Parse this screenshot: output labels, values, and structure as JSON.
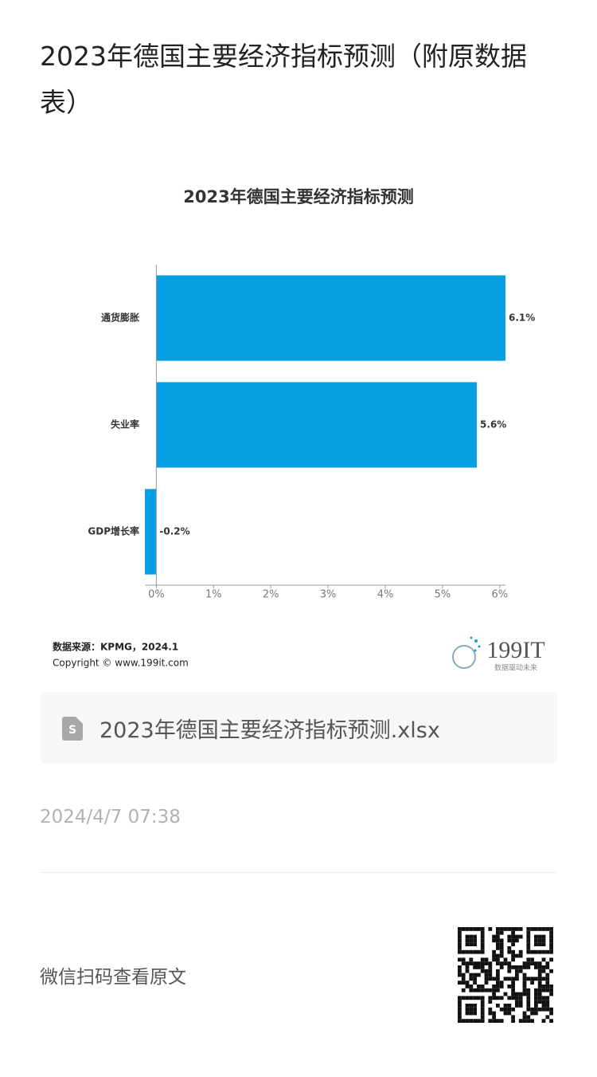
{
  "title": "2023年德国主要经济指标预测（附原数据表）",
  "chart_data": {
    "type": "hbar",
    "title": "2023年德国主要经济指标预测",
    "categories": [
      "通货膨胀",
      "失业率",
      "GDP增长率"
    ],
    "values": [
      6.1,
      5.6,
      -0.2
    ],
    "value_labels": [
      "6.1%",
      "5.6%",
      "-0.2%"
    ],
    "color": "#069fe3",
    "xlim": [
      -0.2,
      6.1
    ],
    "xticks": [
      {
        "value": 0,
        "label": "0%"
      },
      {
        "value": 1,
        "label": "1%"
      },
      {
        "value": 2,
        "label": "2%"
      },
      {
        "value": 3,
        "label": "3%"
      },
      {
        "value": 4,
        "label": "4%"
      },
      {
        "value": 5,
        "label": "5%"
      },
      {
        "value": 6,
        "label": "6%"
      }
    ],
    "source": "数据来源：KPMG，2024.1",
    "copyright": "Copyright © www.199it.com",
    "logo": "199IT",
    "logo_slogan": "数据驱动未来"
  },
  "attachment": "2023年德国主要经济指标预测.xlsx",
  "date": "2024/4/7 07:38",
  "footer": "微信扫码查看原文"
}
